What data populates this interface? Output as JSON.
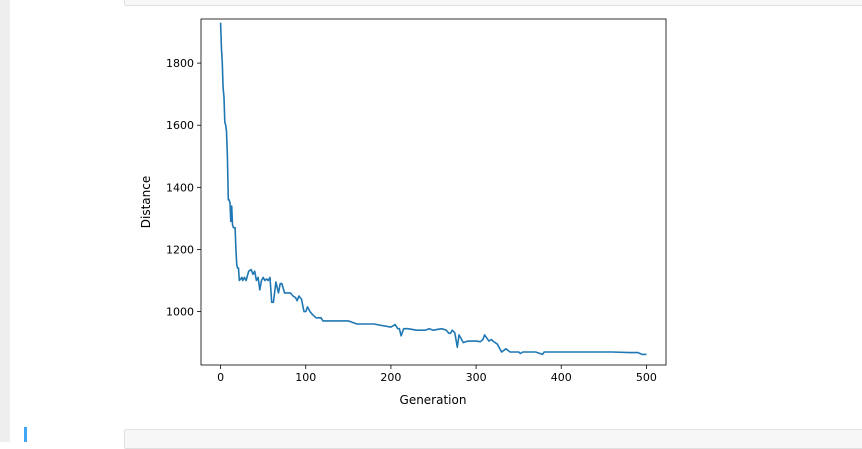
{
  "chart_data": {
    "type": "line",
    "title": "",
    "xlabel": "Generation",
    "ylabel": "Distance",
    "xlim": [
      -23,
      523
    ],
    "ylim": [
      828,
      1942
    ],
    "xticks": [
      0,
      100,
      200,
      300,
      400,
      500
    ],
    "yticks": [
      1000,
      1200,
      1400,
      1600,
      1800
    ],
    "grid": false,
    "color": "#1f77b4",
    "series": [
      {
        "x": [
          0,
          1,
          2,
          3,
          4,
          5,
          6,
          7,
          8,
          9,
          10,
          11,
          12,
          13,
          14,
          15,
          16,
          17,
          18,
          19,
          20,
          21,
          22,
          25,
          26,
          28,
          30,
          33,
          36,
          38,
          40,
          42,
          44,
          46,
          48,
          50,
          52,
          54,
          56,
          58,
          60,
          62,
          65,
          68,
          70,
          72,
          75,
          78,
          80,
          82,
          85,
          88,
          90,
          92,
          95,
          98,
          100,
          102,
          105,
          108,
          110,
          112,
          115,
          118,
          120,
          125,
          130,
          135,
          140,
          150,
          160,
          170,
          180,
          190,
          200,
          205,
          208,
          210,
          212,
          215,
          220,
          230,
          240,
          245,
          250,
          255,
          260,
          265,
          268,
          270,
          272,
          275,
          278,
          280,
          285,
          290,
          300,
          305,
          308,
          310,
          315,
          318,
          320,
          325,
          330,
          335,
          340,
          350,
          352,
          355,
          360,
          370,
          378,
          380,
          390,
          400,
          420,
          450,
          460,
          480,
          490,
          495,
          500
        ],
        "y": [
          1930,
          1850,
          1800,
          1720,
          1690,
          1610,
          1600,
          1580,
          1500,
          1360,
          1360,
          1350,
          1290,
          1340,
          1280,
          1270,
          1270,
          1270,
          1200,
          1150,
          1140,
          1140,
          1100,
          1110,
          1100,
          1110,
          1100,
          1130,
          1135,
          1120,
          1130,
          1100,
          1110,
          1070,
          1100,
          1110,
          1100,
          1105,
          1100,
          1110,
          1030,
          1030,
          1095,
          1060,
          1090,
          1090,
          1060,
          1060,
          1060,
          1060,
          1050,
          1045,
          1035,
          1050,
          1040,
          1000,
          1000,
          1015,
          1000,
          990,
          985,
          980,
          980,
          980,
          970,
          970,
          970,
          970,
          970,
          970,
          960,
          960,
          960,
          955,
          950,
          958,
          945,
          945,
          922,
          945,
          945,
          940,
          940,
          945,
          940,
          943,
          945,
          940,
          930,
          930,
          940,
          932,
          885,
          925,
          900,
          905,
          905,
          903,
          910,
          925,
          905,
          910,
          905,
          895,
          870,
          880,
          870,
          870,
          865,
          870,
          870,
          870,
          862,
          870,
          870,
          870,
          870,
          870,
          870,
          868,
          868,
          862,
          862
        ]
      }
    ]
  }
}
